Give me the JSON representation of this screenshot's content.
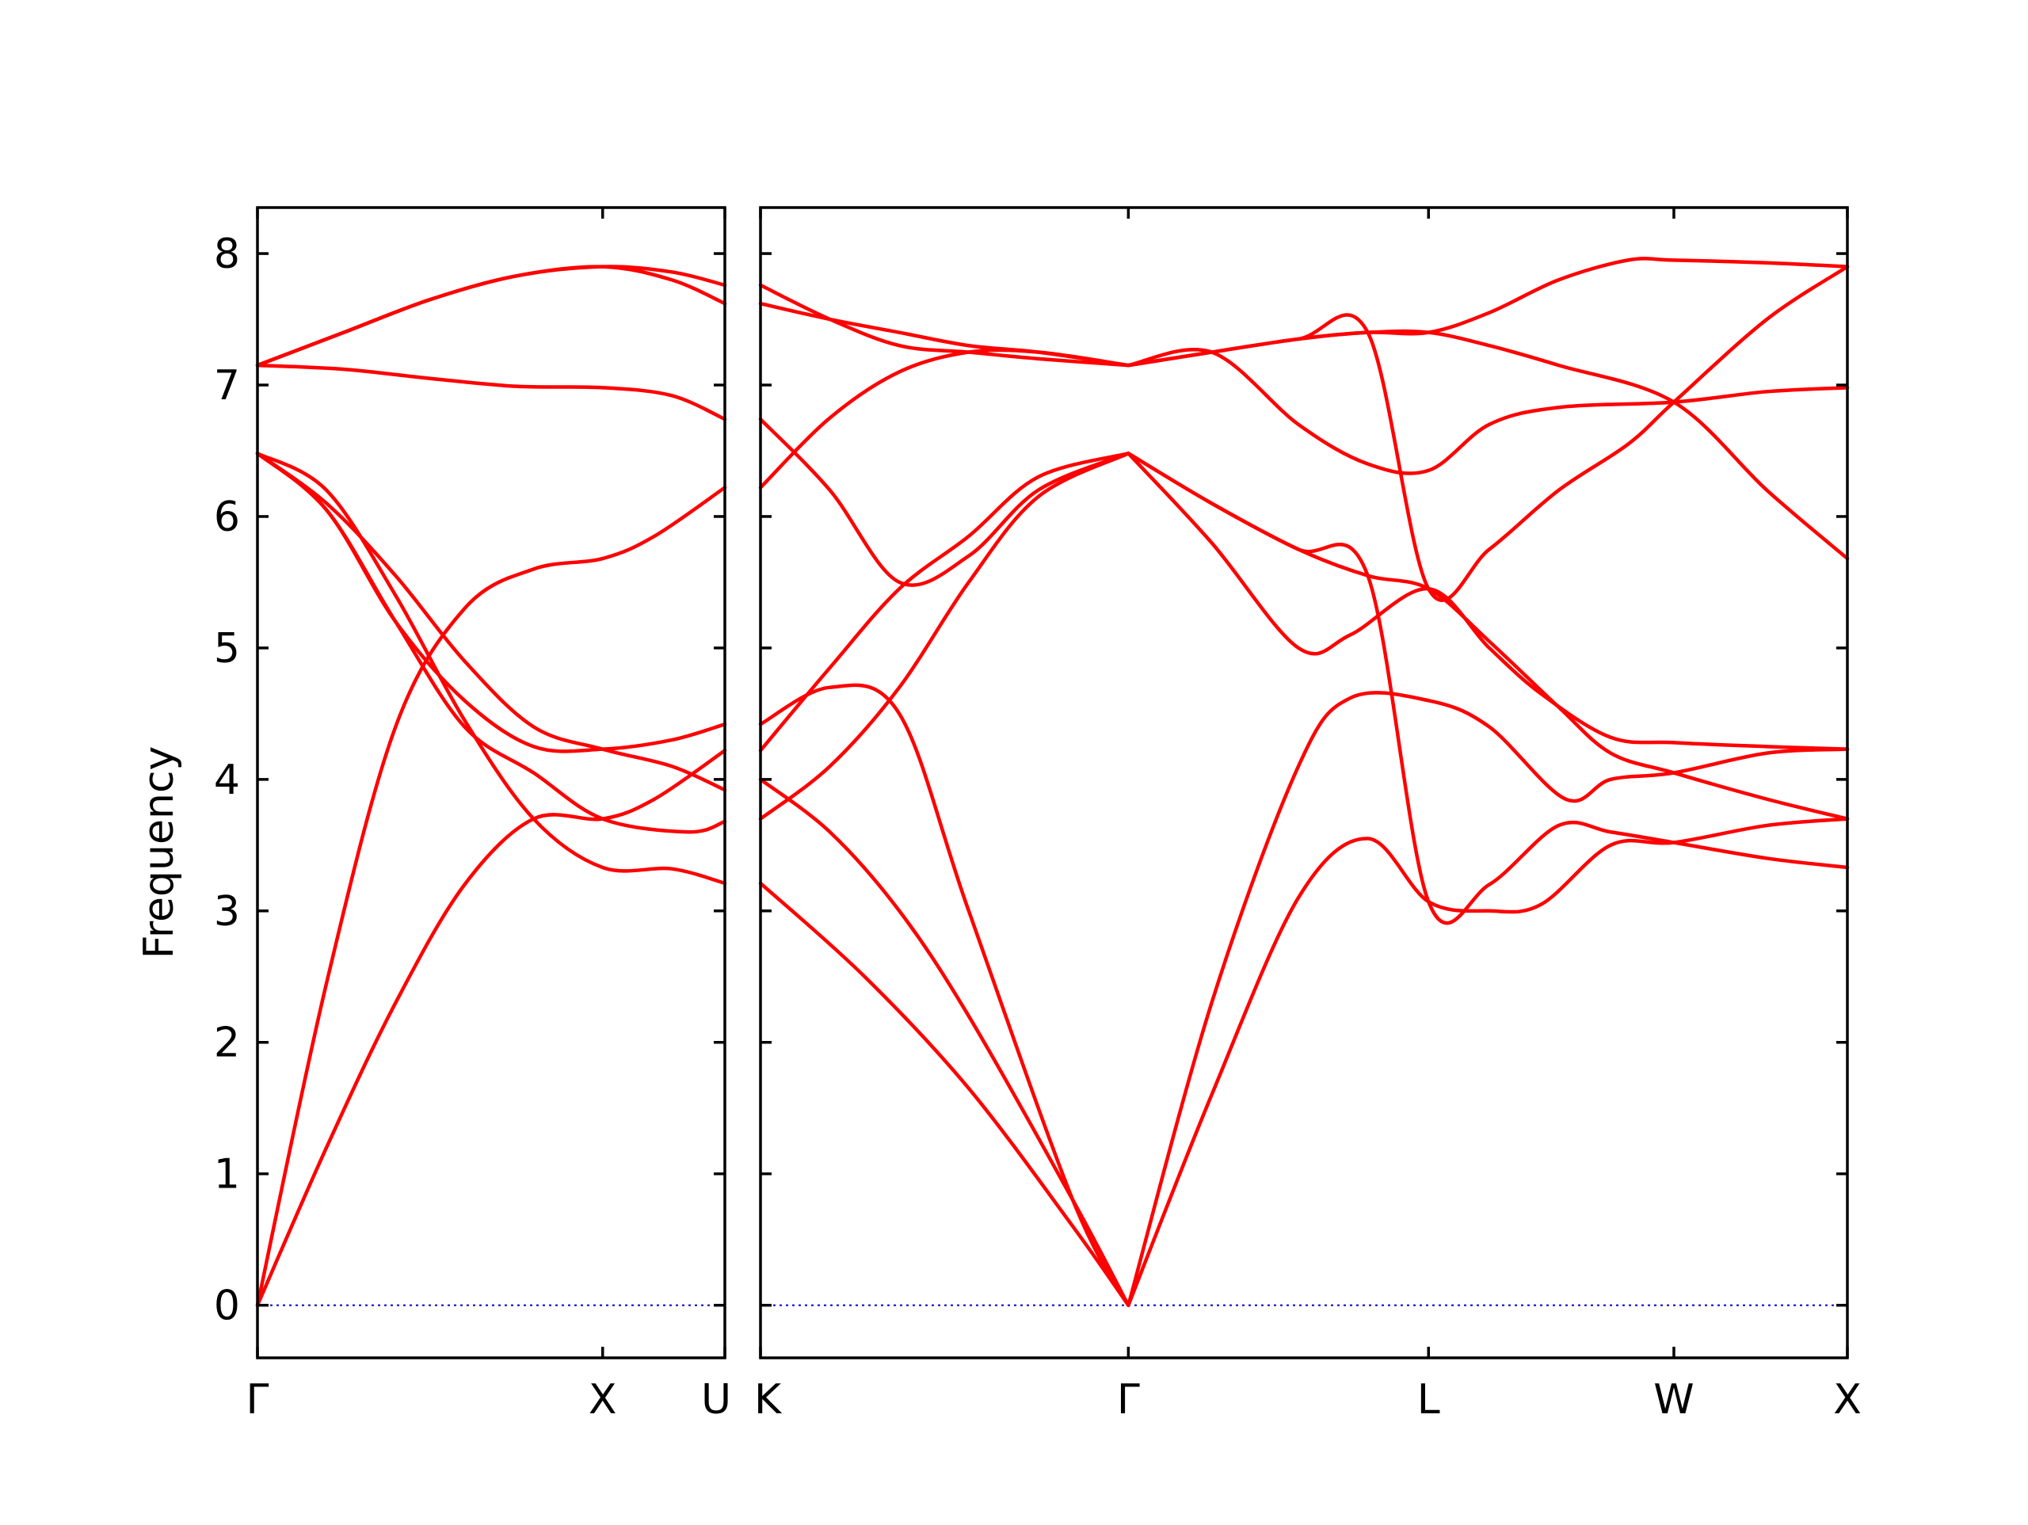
{
  "chart_data": {
    "type": "line",
    "title": "",
    "ylabel": "Frequency",
    "xlabel": "",
    "ylim": [
      -0.4,
      8.35
    ],
    "yticks": [
      0,
      1,
      2,
      3,
      4,
      5,
      6,
      7,
      8
    ],
    "grid": false,
    "colors": {
      "bands": "#ff0000",
      "zero_line": "#0000cc",
      "axes": "#000000"
    },
    "panels": [
      {
        "path_labels": [
          "Γ",
          "X",
          "U"
        ],
        "label_positions": [
          0,
          1.0,
          1.354
        ],
        "x_range": [
          0,
          1.354
        ],
        "bands": [
          [
            [
              0,
              0
            ],
            [
              0.2,
              1.2
            ],
            [
              0.4,
              2.3
            ],
            [
              0.6,
              3.2
            ],
            [
              0.8,
              3.7
            ],
            [
              1.0,
              3.7
            ],
            [
              1.15,
              3.85
            ],
            [
              1.354,
              4.22
            ]
          ],
          [
            [
              0,
              0
            ],
            [
              0.2,
              2.45
            ],
            [
              0.4,
              4.4
            ],
            [
              0.6,
              5.3
            ],
            [
              0.8,
              5.6
            ],
            [
              1.0,
              5.68
            ],
            [
              1.15,
              5.85
            ],
            [
              1.354,
              6.22
            ]
          ],
          [
            [
              0,
              6.48
            ],
            [
              0.2,
              6.2
            ],
            [
              0.4,
              5.4
            ],
            [
              0.6,
              4.45
            ],
            [
              0.8,
              3.7
            ],
            [
              1.0,
              3.33
            ],
            [
              1.2,
              3.32
            ],
            [
              1.354,
              3.21
            ]
          ],
          [
            [
              0,
              6.48
            ],
            [
              0.2,
              6.1
            ],
            [
              0.4,
              5.55
            ],
            [
              0.6,
              4.9
            ],
            [
              0.8,
              4.4
            ],
            [
              1.0,
              4.23
            ],
            [
              1.2,
              4.1
            ],
            [
              1.354,
              3.92
            ]
          ],
          [
            [
              0,
              6.48
            ],
            [
              0.2,
              6.05
            ],
            [
              0.4,
              5.2
            ],
            [
              0.6,
              4.4
            ],
            [
              0.8,
              4.05
            ],
            [
              1.0,
              3.7
            ],
            [
              1.25,
              3.6
            ],
            [
              1.354,
              3.68
            ]
          ],
          [
            [
              0,
              6.48
            ],
            [
              0.2,
              6.05
            ],
            [
              0.4,
              5.2
            ],
            [
              0.6,
              4.6
            ],
            [
              0.8,
              4.25
            ],
            [
              1.0,
              4.23
            ],
            [
              1.2,
              4.3
            ],
            [
              1.354,
              4.42
            ]
          ],
          [
            [
              0,
              7.15
            ],
            [
              0.25,
              7.12
            ],
            [
              0.5,
              7.05
            ],
            [
              0.75,
              6.99
            ],
            [
              1.0,
              6.98
            ],
            [
              1.2,
              6.92
            ],
            [
              1.354,
              6.74
            ]
          ],
          [
            [
              0,
              7.15
            ],
            [
              0.25,
              7.4
            ],
            [
              0.5,
              7.65
            ],
            [
              0.75,
              7.83
            ],
            [
              1.0,
              7.9
            ],
            [
              1.2,
              7.86
            ],
            [
              1.354,
              7.76
            ]
          ],
          [
            [
              0,
              7.15
            ],
            [
              0.25,
              7.4
            ],
            [
              0.5,
              7.65
            ],
            [
              0.75,
              7.83
            ],
            [
              1.0,
              7.9
            ],
            [
              1.2,
              7.8
            ],
            [
              1.354,
              7.62
            ]
          ]
        ]
      },
      {
        "path_labels": [
          "K",
          "Γ",
          "L",
          "W",
          "X"
        ],
        "label_positions": [
          0,
          1.06,
          1.925,
          2.632,
          3.132
        ],
        "x_range": [
          0,
          3.132
        ],
        "bands": [
          [
            [
              0,
              3.21
            ],
            [
              0.3,
              2.5
            ],
            [
              0.6,
              1.65
            ],
            [
              0.9,
              0.6
            ],
            [
              1.06,
              0
            ]
          ],
          [
            [
              0,
              4.0
            ],
            [
              0.2,
              3.6
            ],
            [
              0.4,
              3.0
            ],
            [
              0.6,
              2.2
            ],
            [
              0.9,
              0.8
            ],
            [
              1.06,
              0
            ]
          ],
          [
            [
              0,
              4.42
            ],
            [
              0.2,
              4.7
            ],
            [
              0.4,
              4.5
            ],
            [
              0.6,
              3.0
            ],
            [
              0.9,
              0.8
            ],
            [
              1.06,
              0
            ]
          ],
          [
            [
              0,
              3.7
            ],
            [
              0.2,
              4.1
            ],
            [
              0.4,
              4.7
            ],
            [
              0.6,
              5.5
            ],
            [
              0.8,
              6.15
            ],
            [
              1.06,
              6.48
            ]
          ],
          [
            [
              0,
              4.22
            ],
            [
              0.2,
              4.85
            ],
            [
              0.4,
              5.45
            ],
            [
              0.6,
              5.85
            ],
            [
              0.8,
              6.3
            ],
            [
              1.06,
              6.48
            ]
          ],
          [
            [
              0,
              6.74
            ],
            [
              0.2,
              6.2
            ],
            [
              0.4,
              5.5
            ],
            [
              0.6,
              5.7
            ],
            [
              0.8,
              6.2
            ],
            [
              1.06,
              6.48
            ]
          ],
          [
            [
              0,
              6.22
            ],
            [
              0.2,
              6.75
            ],
            [
              0.4,
              7.1
            ],
            [
              0.6,
              7.25
            ],
            [
              0.8,
              7.25
            ],
            [
              1.06,
              7.15
            ]
          ],
          [
            [
              0,
              7.62
            ],
            [
              0.2,
              7.5
            ],
            [
              0.4,
              7.4
            ],
            [
              0.6,
              7.3
            ],
            [
              0.8,
              7.25
            ],
            [
              1.06,
              7.15
            ]
          ],
          [
            [
              0,
              7.76
            ],
            [
              0.2,
              7.5
            ],
            [
              0.4,
              7.3
            ],
            [
              0.6,
              7.25
            ],
            [
              0.8,
              7.2
            ],
            [
              1.06,
              7.15
            ]
          ],
          [
            [
              1.06,
              0
            ],
            [
              1.3,
              1.6
            ],
            [
              1.55,
              3.1
            ],
            [
              1.75,
              3.55
            ],
            [
              1.925,
              3.07
            ],
            [
              2.1,
              3.0
            ],
            [
              2.25,
              3.05
            ],
            [
              2.45,
              3.5
            ],
            [
              2.632,
              3.52
            ],
            [
              2.9,
              3.65
            ],
            [
              3.132,
              3.7
            ]
          ],
          [
            [
              1.06,
              0
            ],
            [
              1.3,
              2.3
            ],
            [
              1.55,
              4.1
            ],
            [
              1.7,
              4.62
            ],
            [
              1.925,
              4.6
            ],
            [
              2.1,
              4.4
            ],
            [
              2.32,
              3.85
            ],
            [
              2.45,
              4.0
            ],
            [
              2.632,
              4.05
            ],
            [
              2.9,
              4.2
            ],
            [
              3.132,
              4.23
            ]
          ],
          [
            [
              1.06,
              6.48
            ],
            [
              1.3,
              5.8
            ],
            [
              1.55,
              5.0
            ],
            [
              1.7,
              5.1
            ],
            [
              1.925,
              5.45
            ],
            [
              2.1,
              5.0
            ],
            [
              2.25,
              4.65
            ],
            [
              2.45,
              4.32
            ],
            [
              2.632,
              4.28
            ],
            [
              2.9,
              4.25
            ],
            [
              3.132,
              4.23
            ]
          ],
          [
            [
              1.06,
              6.48
            ],
            [
              1.3,
              6.1
            ],
            [
              1.55,
              5.75
            ],
            [
              1.75,
              5.55
            ],
            [
              1.925,
              5.45
            ],
            [
              2.1,
              5.05
            ],
            [
              2.3,
              4.55
            ],
            [
              2.45,
              4.2
            ],
            [
              2.632,
              4.05
            ],
            [
              2.9,
              3.85
            ],
            [
              3.132,
              3.7
            ]
          ],
          [
            [
              1.06,
              6.48
            ],
            [
              1.3,
              6.1
            ],
            [
              1.55,
              5.75
            ],
            [
              1.75,
              5.55
            ],
            [
              1.925,
              3.07
            ],
            [
              2.1,
              3.2
            ],
            [
              2.3,
              3.65
            ],
            [
              2.45,
              3.6
            ],
            [
              2.632,
              3.52
            ],
            [
              2.9,
              3.4
            ],
            [
              3.132,
              3.33
            ]
          ],
          [
            [
              1.06,
              7.15
            ],
            [
              1.3,
              7.25
            ],
            [
              1.55,
              6.7
            ],
            [
              1.75,
              6.4
            ],
            [
              1.925,
              6.35
            ],
            [
              2.1,
              6.7
            ],
            [
              2.3,
              6.83
            ],
            [
              2.632,
              6.87
            ],
            [
              2.9,
              6.95
            ],
            [
              3.132,
              6.98
            ]
          ],
          [
            [
              1.06,
              7.15
            ],
            [
              1.3,
              7.25
            ],
            [
              1.55,
              7.35
            ],
            [
              1.75,
              7.4
            ],
            [
              1.925,
              7.4
            ],
            [
              2.1,
              7.3
            ],
            [
              2.3,
              7.15
            ],
            [
              2.632,
              6.87
            ],
            [
              2.9,
              6.2
            ],
            [
              3.132,
              5.68
            ]
          ],
          [
            [
              1.06,
              7.15
            ],
            [
              1.3,
              7.25
            ],
            [
              1.55,
              7.35
            ],
            [
              1.75,
              7.4
            ],
            [
              1.925,
              7.4
            ],
            [
              2.1,
              7.55
            ],
            [
              2.3,
              7.8
            ],
            [
              2.5,
              7.95
            ],
            [
              2.632,
              7.95
            ],
            [
              2.9,
              7.93
            ],
            [
              3.132,
              7.9
            ]
          ],
          [
            [
              1.06,
              7.15
            ],
            [
              1.3,
              7.25
            ],
            [
              1.55,
              7.35
            ],
            [
              1.75,
              7.4
            ],
            [
              1.925,
              5.45
            ],
            [
              2.1,
              5.75
            ],
            [
              2.3,
              6.2
            ],
            [
              2.5,
              6.55
            ],
            [
              2.632,
              6.87
            ],
            [
              2.9,
              7.5
            ],
            [
              3.132,
              7.9
            ]
          ]
        ]
      }
    ]
  }
}
